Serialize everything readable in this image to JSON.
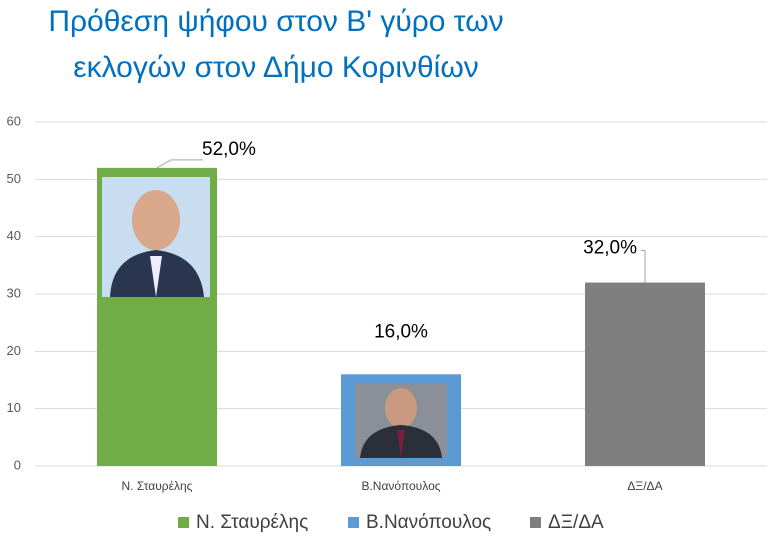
{
  "chart_data": {
    "type": "bar",
    "title": [
      "Πρόθεση ψήφου στον Β' γύρο των",
      "εκλογών στον Δήμο Κορινθίων"
    ],
    "categories": [
      "Ν. Σταυρέλης",
      "Β.Νανόπουλος",
      "ΔΞ/ΔΑ"
    ],
    "values": [
      52,
      16,
      32
    ],
    "value_labels": [
      "52,0%",
      "16,0%",
      "32,0%"
    ],
    "colors": [
      "#70ad47",
      "#5b9bd5",
      "#7f7f7f"
    ],
    "ylim": [
      0,
      60
    ],
    "yticks": [
      0,
      10,
      20,
      30,
      40,
      50,
      60
    ],
    "grid": true,
    "legend": "bottom"
  }
}
